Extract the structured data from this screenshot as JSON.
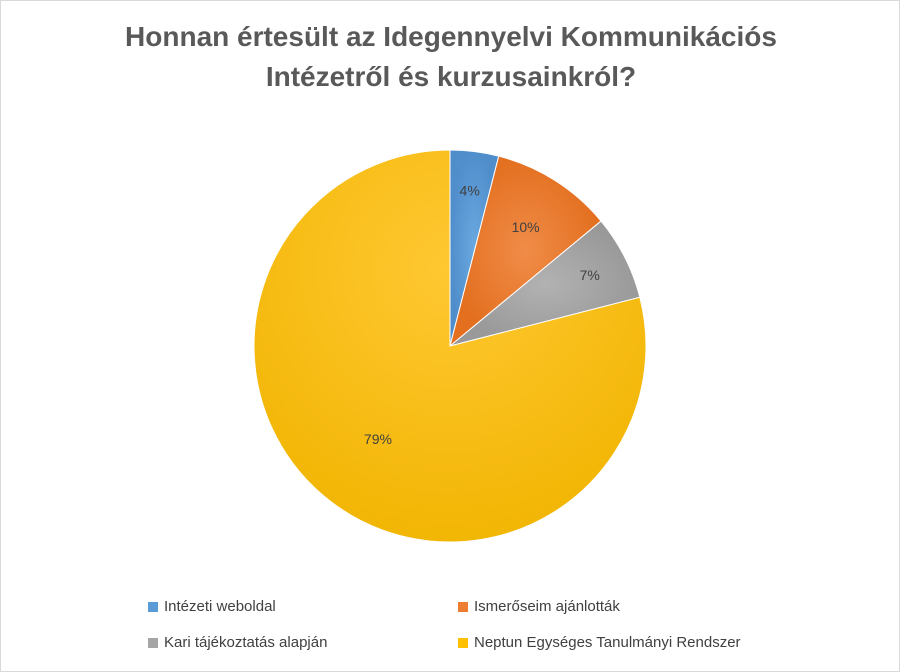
{
  "chart_data": {
    "type": "pie",
    "title_lines": [
      "Honnan értesült az Idegennyelvi Kommunikációs",
      "Intézetről és kurzusainkról?"
    ],
    "categories": [
      "Intézeti weboldal",
      "Ismerőseim ajánlották",
      "Kari tájékoztatás alapján",
      "Neptun Egységes Tanulmányi Rendszer"
    ],
    "values": [
      4,
      10,
      7,
      79
    ],
    "labels": [
      "4%",
      "10%",
      "7%",
      "79%"
    ],
    "colors": [
      "#5b9bd5",
      "#ed7d31",
      "#a5a5a5",
      "#ffc000"
    ],
    "legend_position": "bottom"
  }
}
